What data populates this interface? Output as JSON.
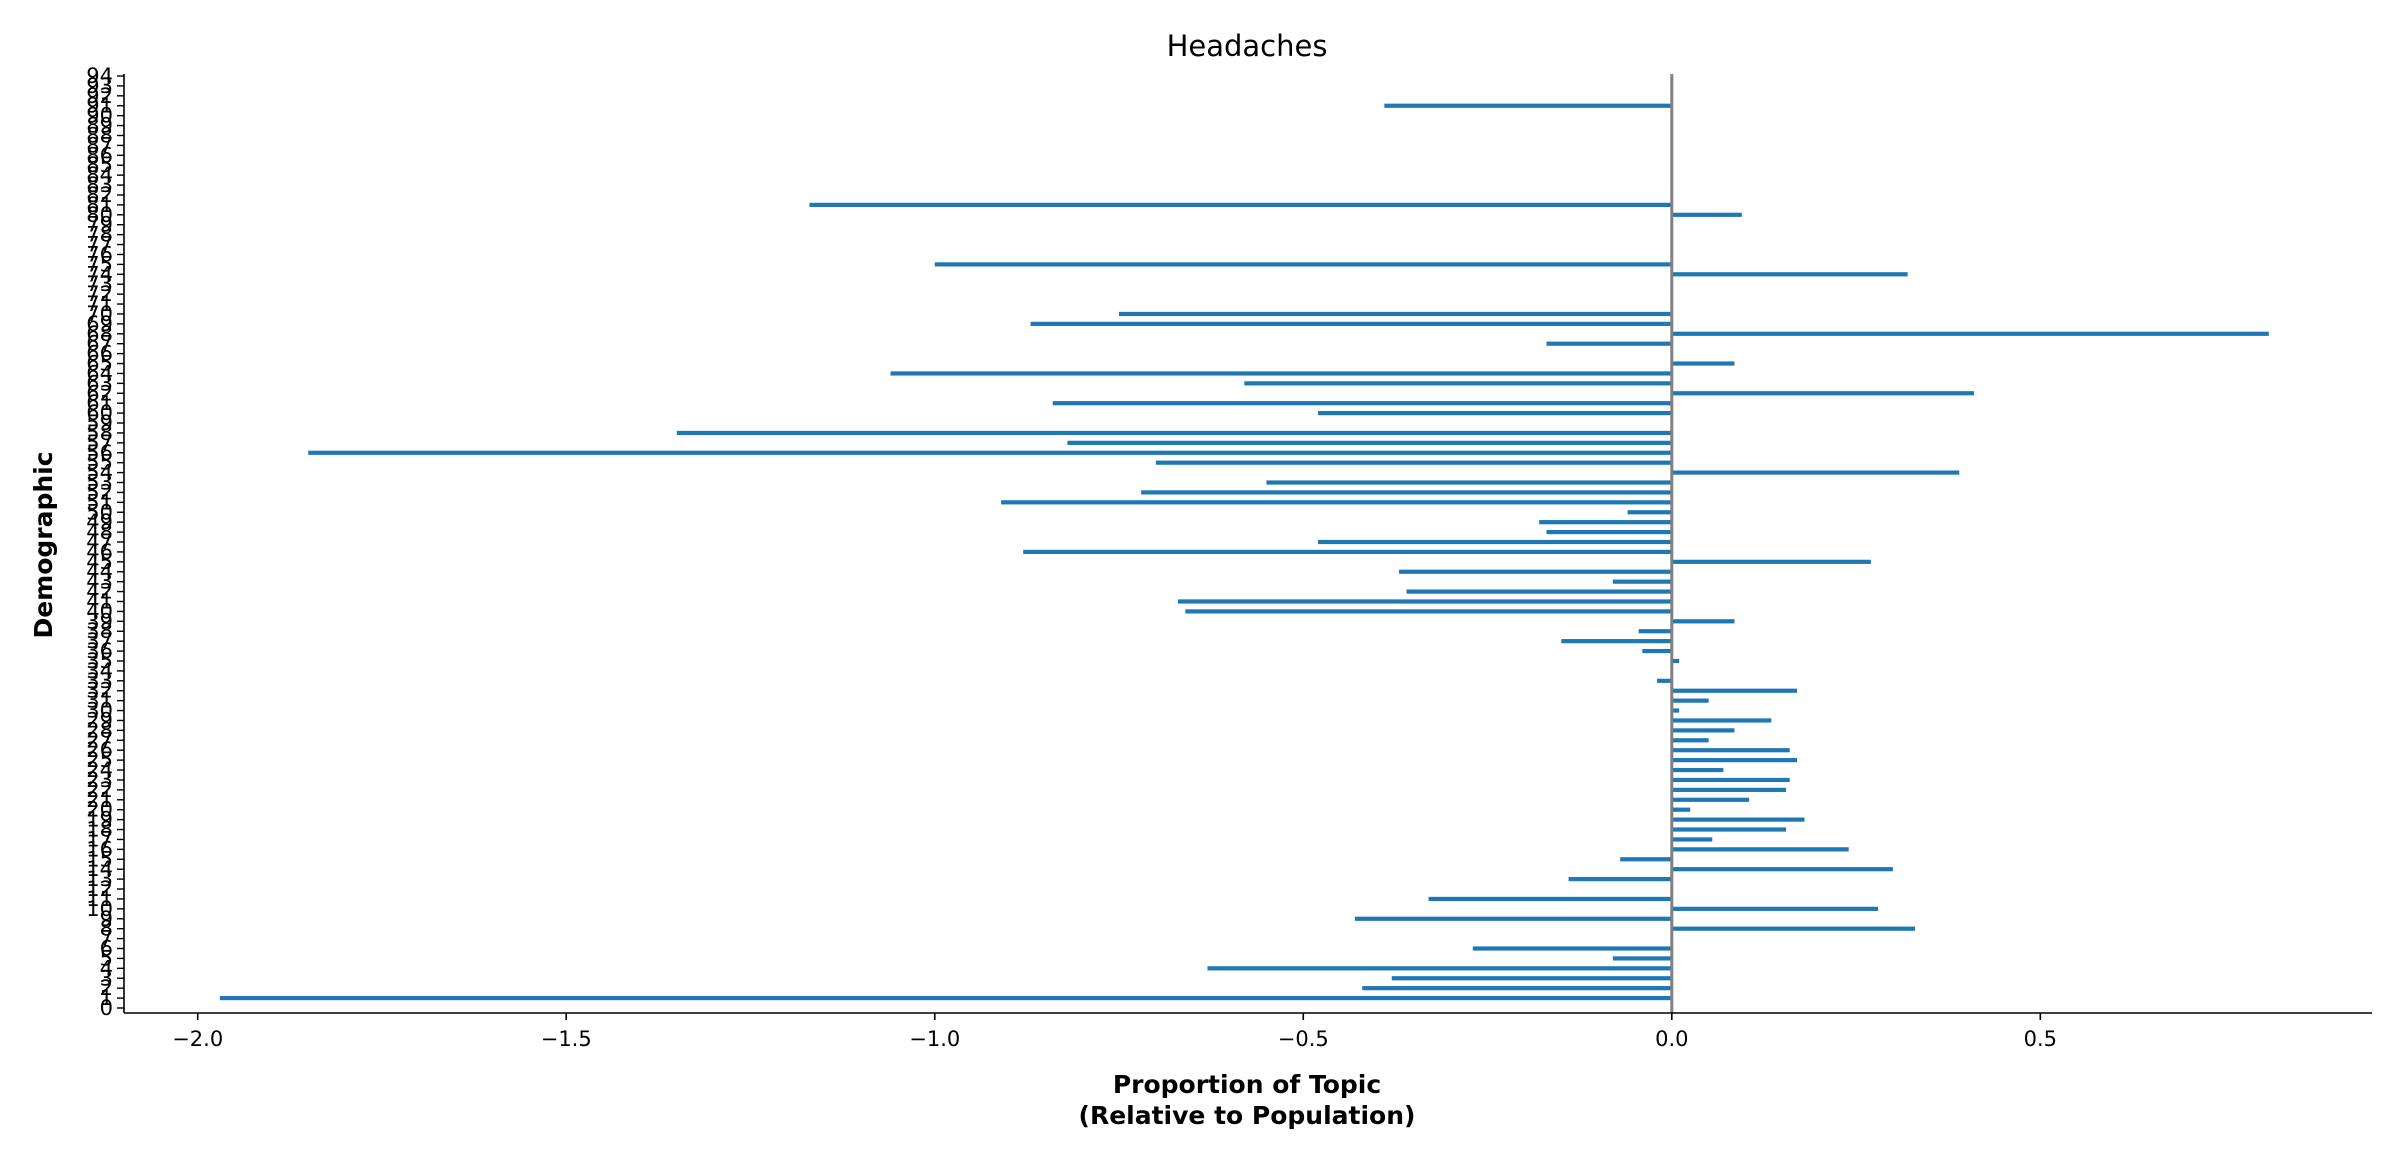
{
  "chart_data": {
    "type": "bar",
    "orientation": "horizontal",
    "title": "Headaches",
    "xlabel_line1": "Proportion of Topic",
    "xlabel_line2": "(Relative to Population)",
    "ylabel": "Demographic",
    "xlim": [
      -2.1,
      0.95
    ],
    "xticks": [
      -2.0,
      -1.5,
      -1.0,
      -0.5,
      0.0,
      0.5
    ],
    "xtick_labels": [
      "−2.0",
      "−1.5",
      "−1.0",
      "−0.5",
      "0.0",
      "0.5"
    ],
    "ylim": [
      -0.5,
      94.5
    ],
    "categories": [
      0,
      1,
      2,
      3,
      4,
      5,
      6,
      7,
      8,
      9,
      10,
      11,
      12,
      13,
      14,
      15,
      16,
      17,
      18,
      19,
      20,
      21,
      22,
      23,
      24,
      25,
      26,
      27,
      28,
      29,
      30,
      31,
      32,
      33,
      34,
      35,
      36,
      37,
      38,
      39,
      40,
      41,
      42,
      43,
      44,
      45,
      46,
      47,
      48,
      49,
      50,
      51,
      52,
      53,
      54,
      55,
      56,
      57,
      58,
      59,
      60,
      61,
      62,
      63,
      64,
      65,
      66,
      67,
      68,
      69,
      70,
      71,
      72,
      73,
      74,
      75,
      76,
      77,
      78,
      79,
      80,
      81,
      82,
      83,
      84,
      85,
      86,
      87,
      88,
      89,
      90,
      91,
      92,
      93,
      94
    ],
    "values": [
      0,
      -1.97,
      -0.42,
      -0.38,
      -0.63,
      -0.08,
      -0.27,
      0,
      0.33,
      -0.43,
      0.28,
      -0.33,
      0,
      -0.14,
      0.3,
      -0.07,
      0.24,
      0.055,
      0.155,
      0.18,
      0.025,
      0.105,
      0.155,
      0.16,
      0.07,
      0.17,
      0.16,
      0.05,
      0.085,
      0.135,
      0.01,
      0.05,
      0.17,
      -0.02,
      0,
      0.01,
      -0.04,
      -0.15,
      -0.045,
      0.085,
      -0.66,
      -0.67,
      -0.36,
      -0.08,
      -0.37,
      0.27,
      -0.88,
      -0.48,
      -0.17,
      -0.18,
      -0.06,
      -0.91,
      -0.72,
      -0.55,
      0.39,
      -0.7,
      -1.85,
      -0.82,
      -1.35,
      0,
      -0.48,
      -0.84,
      0.41,
      -0.58,
      -1.06,
      0.085,
      0,
      -0.17,
      0.81,
      -0.87,
      -0.75,
      0,
      0,
      0,
      0.32,
      -1.0,
      0,
      0,
      0,
      0,
      0.095,
      -1.17,
      0,
      0,
      0,
      0,
      0,
      0,
      0,
      0,
      0,
      -0.39,
      0,
      0,
      0
    ],
    "bar_color": "#1f77b4",
    "zero_line_color": "#808080",
    "legend": "none",
    "grid": false
  }
}
